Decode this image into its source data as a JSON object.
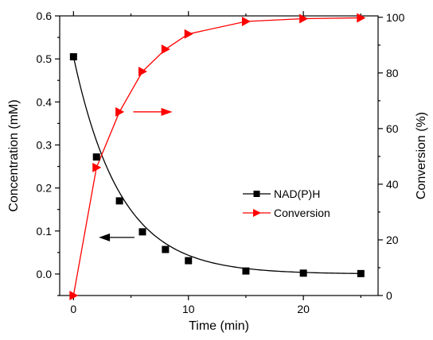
{
  "chart_data": {
    "type": "line",
    "title": "",
    "xlabel": "Time (min)",
    "ylabel_left": "Concentration (mM)",
    "ylabel_right": "Conversion (%)",
    "xlim": [
      -1.2,
      26.5
    ],
    "ylim_left": [
      -0.05,
      0.6
    ],
    "ylim_right": [
      0,
      100.5
    ],
    "x_ticks": [
      0,
      10,
      20
    ],
    "y_left_ticks": [
      0.0,
      0.1,
      0.2,
      0.3,
      0.4,
      0.5,
      0.6
    ],
    "y_left_tick_labels": [
      "0.0",
      "0.1",
      "0.2",
      "0.3",
      "0.4",
      "0.5",
      "0.6"
    ],
    "y_right_ticks": [
      0,
      20,
      40,
      60,
      80,
      100
    ],
    "y_right_tick_labels": [
      "0",
      "20",
      "40",
      "60",
      "80",
      "100"
    ],
    "grid": false,
    "legend_position": "center-right",
    "series": [
      {
        "name": "NAD(P)H",
        "axis": "left",
        "marker": "square",
        "color": "#000000",
        "x": [
          0,
          2,
          4,
          6,
          8,
          10,
          15,
          20,
          25
        ],
        "y": [
          0.505,
          0.272,
          0.17,
          0.098,
          0.057,
          0.031,
          0.007,
          0.002,
          0.001
        ]
      },
      {
        "name": "Conversion",
        "axis": "right",
        "marker": "triangle-right",
        "color": "#ff0000",
        "x": [
          0,
          2,
          4,
          6,
          8,
          10,
          15,
          20,
          25
        ],
        "y": [
          0,
          46,
          66,
          80.5,
          88.5,
          94,
          98.5,
          99.5,
          99.8
        ]
      }
    ],
    "annotations": [
      {
        "type": "arrow",
        "direction": "left",
        "axis": "left",
        "x_from": 5.3,
        "x_to": 2.2,
        "y": 0.085,
        "color": "#000000"
      },
      {
        "type": "arrow",
        "direction": "right",
        "axis": "right",
        "x_from": 5.2,
        "x_to": 8.6,
        "y": 66,
        "color": "#ff0000"
      }
    ]
  }
}
